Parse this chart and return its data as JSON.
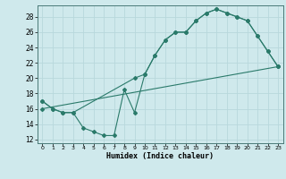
{
  "xlabel": "Humidex (Indice chaleur)",
  "bg_color": "#cfe9ec",
  "line_color": "#2a7a6a",
  "grid_color": "#b8d8dc",
  "xlim": [
    -0.5,
    23.5
  ],
  "ylim": [
    11.5,
    29.5
  ],
  "xticks": [
    0,
    1,
    2,
    3,
    4,
    5,
    6,
    7,
    8,
    9,
    10,
    11,
    12,
    13,
    14,
    15,
    16,
    17,
    18,
    19,
    20,
    21,
    22,
    23
  ],
  "yticks": [
    12,
    14,
    16,
    18,
    20,
    22,
    24,
    26,
    28
  ],
  "line1_x": [
    0,
    1,
    2,
    3,
    4,
    5,
    6,
    7,
    8,
    9,
    10,
    11,
    12,
    13,
    14,
    15,
    16,
    17,
    18,
    19,
    20,
    21,
    22,
    23
  ],
  "line1_y": [
    17,
    16,
    15.5,
    15.5,
    13.5,
    13,
    12.5,
    12.5,
    18.5,
    15.5,
    20.5,
    23,
    25,
    26,
    26,
    27.5,
    28.5,
    29,
    28.5,
    28,
    27.5,
    25.5,
    23.5,
    21.5
  ],
  "line2_x": [
    0,
    1,
    2,
    3,
    9,
    10,
    11,
    12,
    13,
    14,
    15,
    16,
    17,
    18,
    19,
    20,
    21,
    22,
    23
  ],
  "line2_y": [
    17,
    16,
    15.5,
    15.5,
    20,
    20.5,
    23,
    25,
    26,
    26,
    27.5,
    28.5,
    29,
    28.5,
    28,
    27.5,
    25.5,
    23.5,
    21.5
  ],
  "line3_x": [
    0,
    23
  ],
  "line3_y": [
    16,
    21.5
  ]
}
